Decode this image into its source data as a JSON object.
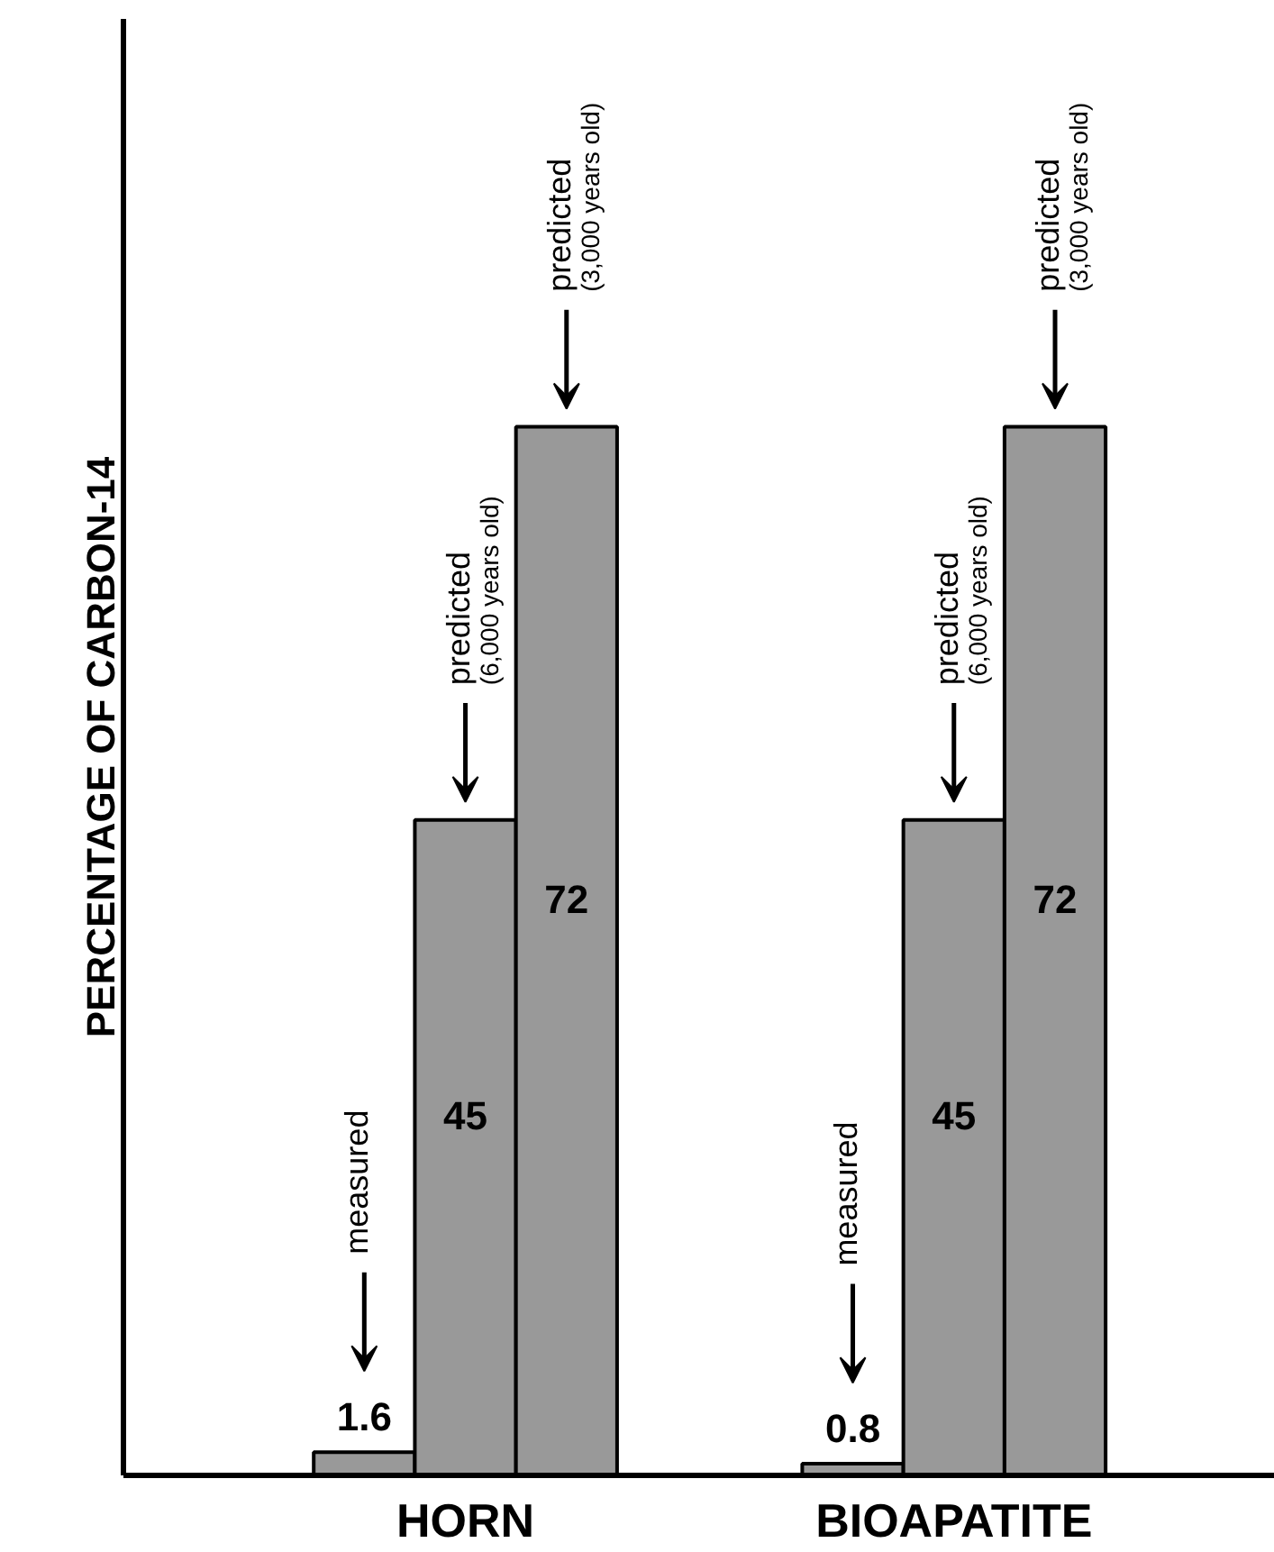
{
  "chart_data": {
    "type": "bar",
    "ylabel": "PERCENTAGE OF CARBON-14",
    "categories": [
      "HORN",
      "BIOAPATITE"
    ],
    "series": [
      {
        "color": "#999999",
        "values": [
          1.6,
          0.8
        ]
      },
      {
        "color": "#999999",
        "values": [
          45,
          45
        ]
      },
      {
        "color": "#999999",
        "values": [
          72,
          72
        ]
      }
    ],
    "ylim": [
      0,
      100
    ],
    "data_labels": true,
    "tick_labels": "x",
    "annotations": [
      "measured",
      "predicted",
      "(6,000 years old)",
      "predicted",
      "(3,000 years old)",
      "measured",
      "predicted",
      "(6,000 years old)",
      "predicted",
      "(3,000 years old)"
    ]
  }
}
